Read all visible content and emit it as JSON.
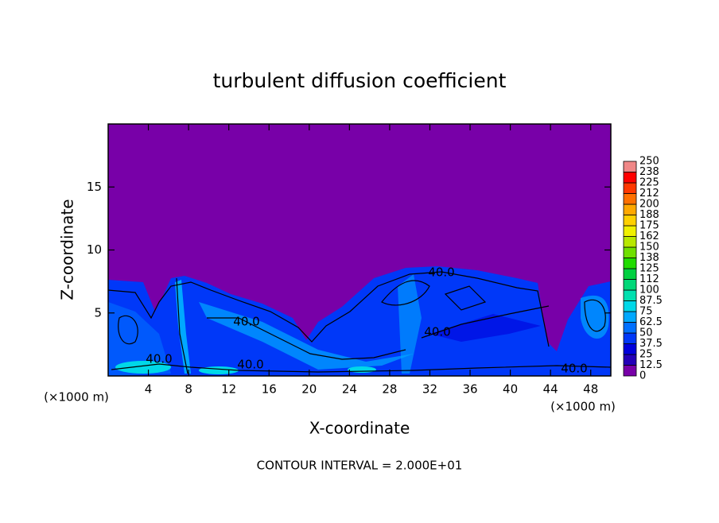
{
  "chart_data": {
    "type": "contour",
    "title": "turbulent diffusion coefficient",
    "x_label": "X-coordinate",
    "y_label": "Z-coordinate",
    "x_unit": "(×1000 m)",
    "x_unit_right": "(×1000 m)",
    "note": "CONTOUR INTERVAL = 2.000E+01",
    "xlim": [
      0,
      50
    ],
    "xticks": [
      4,
      8,
      12,
      16,
      20,
      24,
      28,
      32,
      36,
      40,
      44,
      48
    ],
    "ylim": [
      0,
      20
    ],
    "yticks": [
      5,
      10,
      15
    ],
    "contour_labels": [
      "40.0",
      "40.0",
      "40.0",
      "40.0",
      "40.0",
      "40.0"
    ],
    "colorbar": {
      "ticks": [
        0,
        12.5,
        25,
        37.5,
        50,
        62.5,
        75,
        87.5,
        100,
        112,
        125,
        138,
        150,
        162,
        175,
        188,
        200,
        212,
        225,
        238,
        250
      ],
      "colors": [
        "#7800a8",
        "#2400b8",
        "#0000dc",
        "#0038f8",
        "#0070ff",
        "#00a8ff",
        "#00d8e8",
        "#00e0b0",
        "#00d878",
        "#00d040",
        "#20dc00",
        "#70e000",
        "#b8e800",
        "#f0f000",
        "#ffd000",
        "#ffa800",
        "#ff7000",
        "#ff3800",
        "#ff0000",
        "#f08888"
      ]
    }
  }
}
